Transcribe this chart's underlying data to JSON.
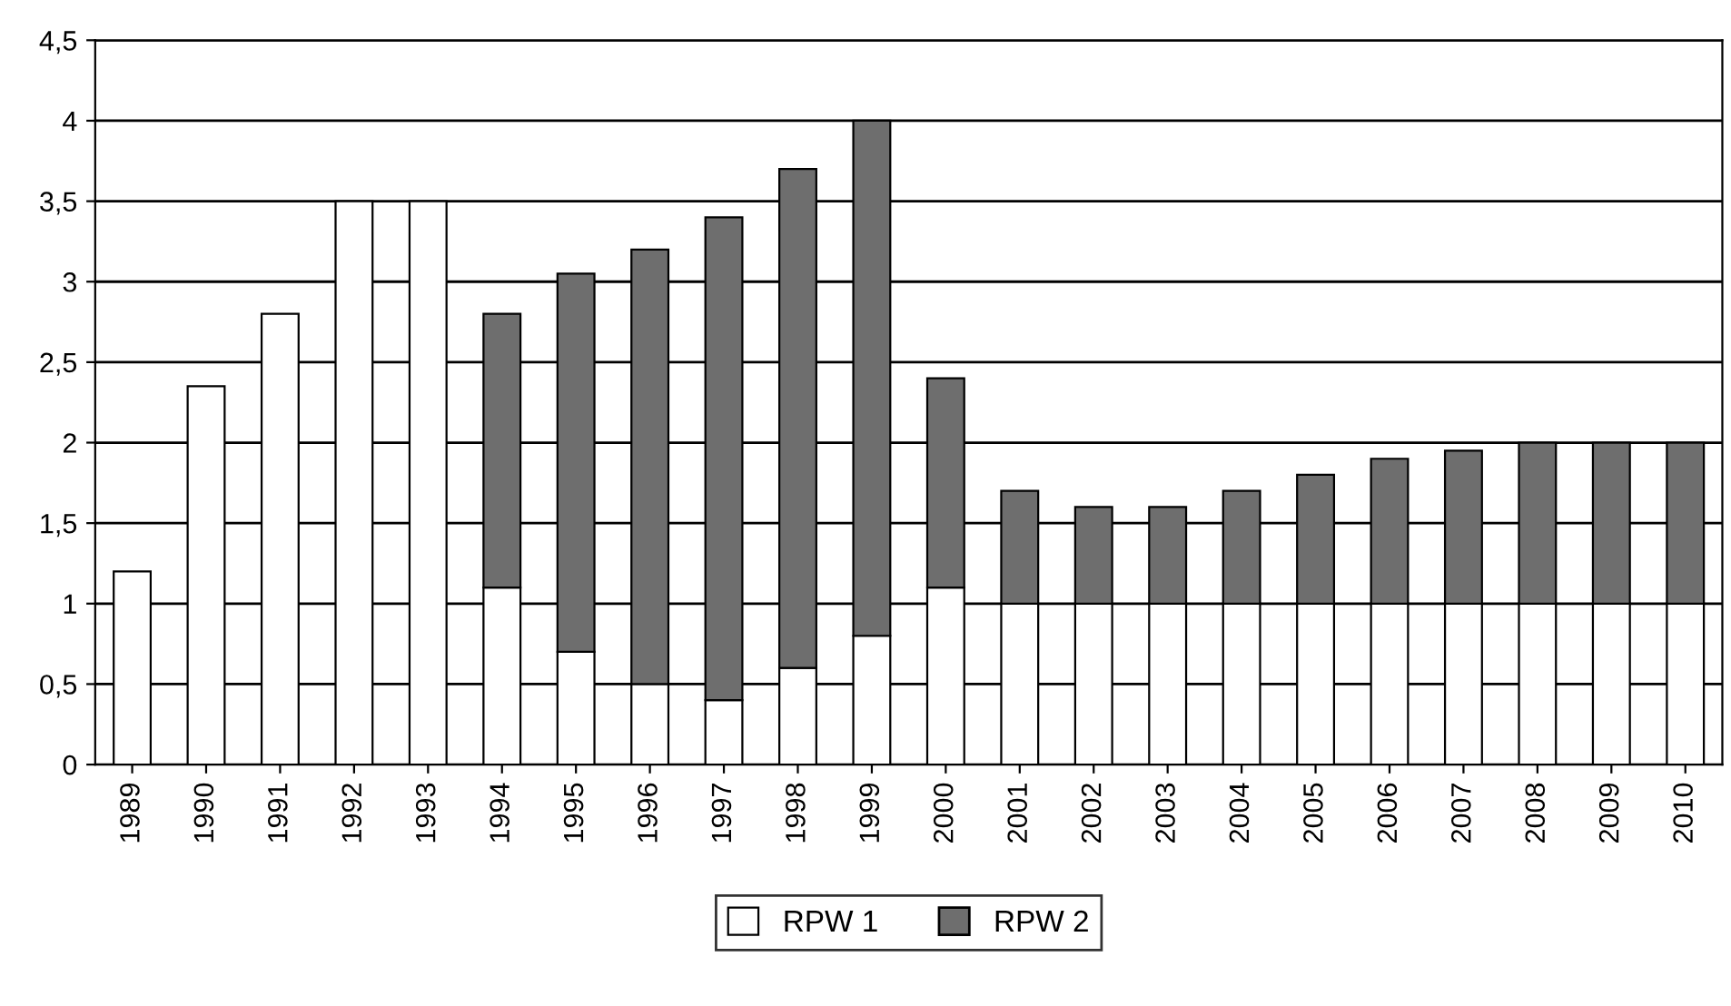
{
  "chart_data": {
    "type": "bar",
    "stacked": true,
    "categories": [
      "1989",
      "1990",
      "1991",
      "1992",
      "1993",
      "1994",
      "1995",
      "1996",
      "1997",
      "1998",
      "1999",
      "2000",
      "2001",
      "2002",
      "2003",
      "2004",
      "2005",
      "2006",
      "2007",
      "2008",
      "2009",
      "2010"
    ],
    "series": [
      {
        "name": "RPW 1",
        "color": "#ffffff",
        "values": [
          1.2,
          2.35,
          2.8,
          3.5,
          3.5,
          1.1,
          0.7,
          0.5,
          0.4,
          0.6,
          0.8,
          1.1,
          1,
          1,
          1,
          1,
          1,
          1,
          1,
          1,
          1,
          1
        ]
      },
      {
        "name": "RPW 2",
        "color": "#6e6e6e",
        "values": [
          null,
          null,
          null,
          null,
          null,
          1.7,
          2.35,
          2.7,
          3.0,
          3.1,
          3.2,
          1.3,
          0.7,
          0.6,
          0.6,
          0.7,
          0.8,
          0.9,
          0.95,
          1,
          1,
          1
        ]
      }
    ],
    "ylim": [
      0,
      4.5
    ],
    "yticks": [
      0,
      {
        "value": 0.5,
        "label": "0,5"
      },
      1,
      {
        "value": 1.5,
        "label": "1,5"
      },
      2,
      {
        "value": 2.5,
        "label": "2,5"
      },
      3,
      {
        "value": 3.5,
        "label": "3,5"
      },
      4,
      {
        "value": 4.5,
        "label": "4,5"
      }
    ],
    "grid": "y",
    "legend": "bottom"
  }
}
